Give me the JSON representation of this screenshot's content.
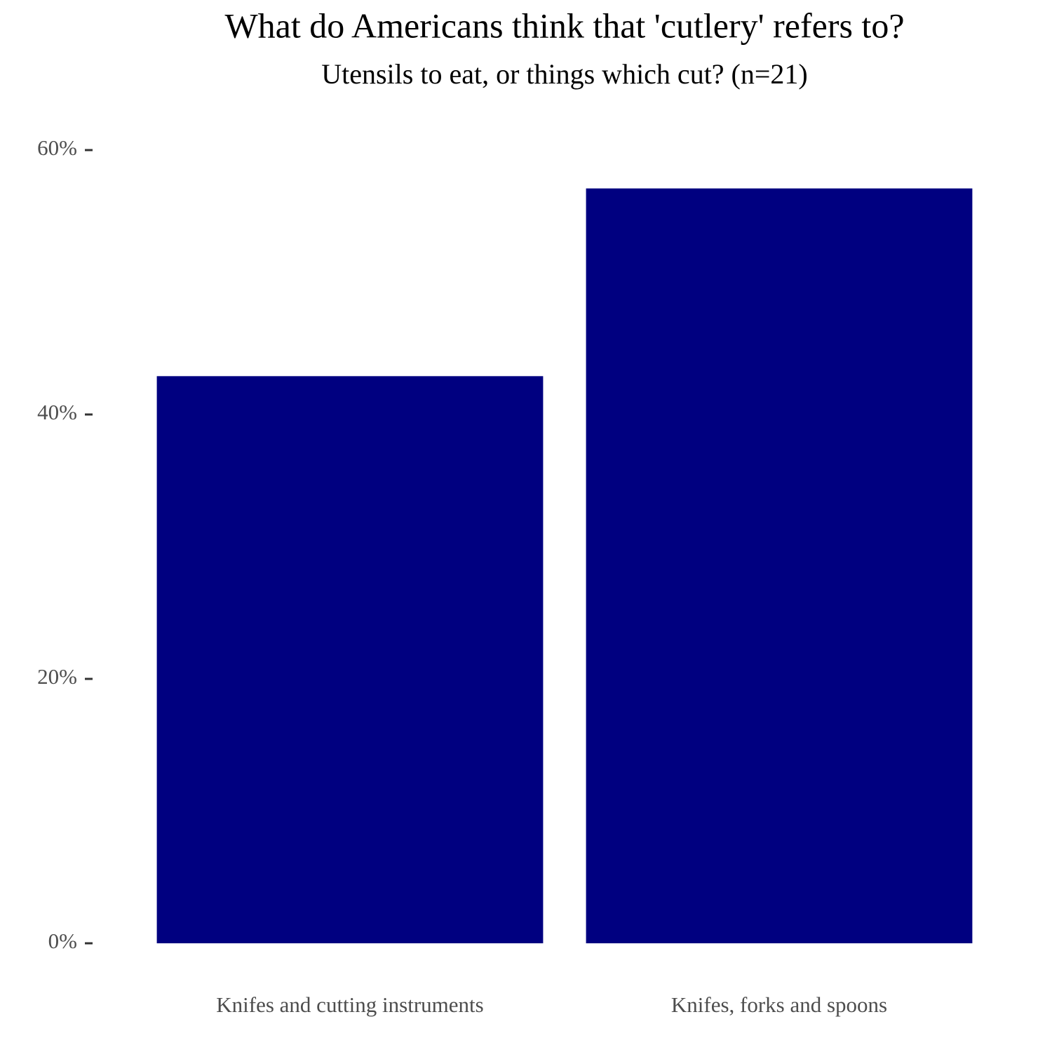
{
  "chart_data": {
    "type": "bar",
    "title": "What do Americans think that 'cutlery' refers to?",
    "subtitle": "Utensils to eat, or things which cut? (n=21)",
    "categories": [
      "Knifes and cutting instruments",
      "Knifes, forks and spoons"
    ],
    "values": [
      42.9,
      57.1
    ],
    "color": "#000080",
    "ylim": [
      0,
      60
    ],
    "yticks": [
      {
        "value": 0,
        "label": "0%"
      },
      {
        "value": 20,
        "label": "20%"
      },
      {
        "value": 40,
        "label": "40%"
      },
      {
        "value": 60,
        "label": "60%"
      }
    ],
    "grid": false
  }
}
